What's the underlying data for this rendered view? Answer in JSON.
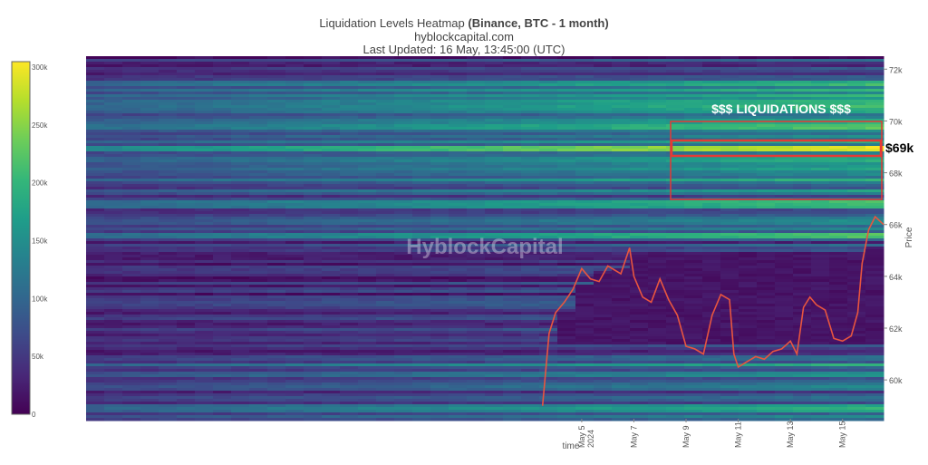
{
  "header": {
    "title_main": "Liquidation Levels Heatmap ",
    "title_bold": "(Binance, BTC - 1 month)",
    "subtitle": "hyblockcapital.com",
    "updated": "Last Updated: 16 May, 13:45:00 (UTC)"
  },
  "watermark": "HyblockCapital",
  "annotations": {
    "liquidations_label": "$$$ LIQUIDATIONS $$$",
    "price_label": "$69k",
    "box_color": "#e53935"
  },
  "colorbar": {
    "ticks": [
      "300k",
      "250k",
      "200k",
      "150k",
      "100k",
      "50k",
      "0"
    ],
    "tick_values": [
      300000,
      250000,
      200000,
      150000,
      100000,
      50000,
      0
    ],
    "colorscale": "viridis"
  },
  "chart_data": {
    "type": "heatmap",
    "xlabel": "time",
    "ylabel": "Price",
    "xlim": [
      "2024-04-16",
      "2024-05-16T13:45"
    ],
    "ylim": [
      58500,
      72500
    ],
    "x_ticks": [
      {
        "date": "2024-05-05",
        "label": "May 5",
        "sublabel": "2024"
      },
      {
        "date": "2024-05-07",
        "label": "May 7",
        "sublabel": ""
      },
      {
        "date": "2024-05-09",
        "label": "May 9",
        "sublabel": ""
      },
      {
        "date": "2024-05-11",
        "label": "May 11",
        "sublabel": ""
      },
      {
        "date": "2024-05-13",
        "label": "May 13",
        "sublabel": ""
      },
      {
        "date": "2024-05-15",
        "label": "May 15",
        "sublabel": ""
      }
    ],
    "y_ticks": [
      {
        "value": 60000,
        "label": "60k"
      },
      {
        "value": 62000,
        "label": "62k"
      },
      {
        "value": 64000,
        "label": "64k"
      },
      {
        "value": 66000,
        "label": "66k"
      },
      {
        "value": 68000,
        "label": "68k"
      },
      {
        "value": 70000,
        "label": "70k"
      },
      {
        "value": 72000,
        "label": "72k"
      }
    ],
    "price_series": {
      "name": "BTC price",
      "color": "#e8553f",
      "points": [
        [
          "2024-05-03T12:00",
          59000
        ],
        [
          "2024-05-03T18:00",
          61800
        ],
        [
          "2024-05-04T00:00",
          62600
        ],
        [
          "2024-05-04T08:00",
          63000
        ],
        [
          "2024-05-04T16:00",
          63500
        ],
        [
          "2024-05-05T00:00",
          64300
        ],
        [
          "2024-05-05T08:00",
          63900
        ],
        [
          "2024-05-05T16:00",
          63800
        ],
        [
          "2024-05-06T00:00",
          64400
        ],
        [
          "2024-05-06T12:00",
          64100
        ],
        [
          "2024-05-06T20:00",
          65100
        ],
        [
          "2024-05-07T00:00",
          64000
        ],
        [
          "2024-05-07T08:00",
          63200
        ],
        [
          "2024-05-07T16:00",
          63000
        ],
        [
          "2024-05-08T00:00",
          63900
        ],
        [
          "2024-05-08T08:00",
          63100
        ],
        [
          "2024-05-08T16:00",
          62500
        ],
        [
          "2024-05-09T00:00",
          61300
        ],
        [
          "2024-05-09T08:00",
          61200
        ],
        [
          "2024-05-09T16:00",
          61000
        ],
        [
          "2024-05-10T00:00",
          62500
        ],
        [
          "2024-05-10T08:00",
          63300
        ],
        [
          "2024-05-10T16:00",
          63100
        ],
        [
          "2024-05-10T20:00",
          61000
        ],
        [
          "2024-05-11T00:00",
          60500
        ],
        [
          "2024-05-11T08:00",
          60700
        ],
        [
          "2024-05-11T16:00",
          60900
        ],
        [
          "2024-05-12T00:00",
          60800
        ],
        [
          "2024-05-12T08:00",
          61100
        ],
        [
          "2024-05-12T16:00",
          61200
        ],
        [
          "2024-05-13T00:00",
          61500
        ],
        [
          "2024-05-13T06:00",
          61000
        ],
        [
          "2024-05-13T12:00",
          62800
        ],
        [
          "2024-05-13T18:00",
          63200
        ],
        [
          "2024-05-14T00:00",
          62900
        ],
        [
          "2024-05-14T08:00",
          62700
        ],
        [
          "2024-05-14T16:00",
          61600
        ],
        [
          "2024-05-15T00:00",
          61500
        ],
        [
          "2024-05-15T08:00",
          61700
        ],
        [
          "2024-05-15T14:00",
          62600
        ],
        [
          "2024-05-15T18:00",
          64500
        ],
        [
          "2024-05-16T00:00",
          65800
        ],
        [
          "2024-05-16T06:00",
          66300
        ],
        [
          "2024-05-16T13:45",
          66000
        ]
      ]
    }
  }
}
